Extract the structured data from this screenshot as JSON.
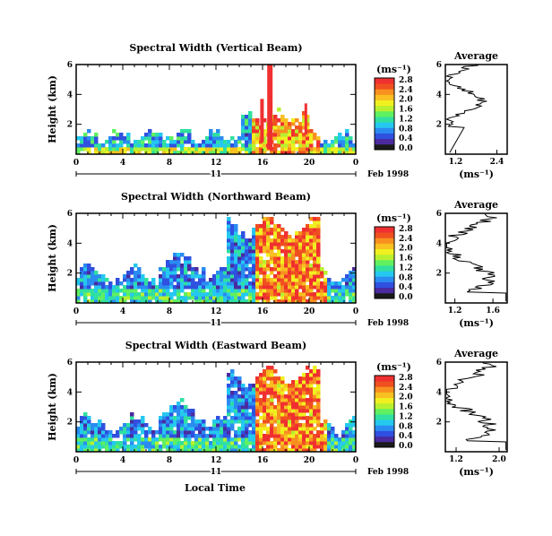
{
  "figure": {
    "xlabel": "Local Time",
    "date_label": "Feb 1998",
    "day_label": "11"
  },
  "colorbar": {
    "unit": "(ms⁻¹)",
    "tick_labels": [
      "0.0",
      "0.4",
      "0.8",
      "1.2",
      "1.6",
      "2.0",
      "2.4",
      "2.8"
    ],
    "colors": [
      "#1a1a1a",
      "#4a2a9e",
      "#3050e0",
      "#2a8cf0",
      "#25c8f0",
      "#30e0a0",
      "#60f060",
      "#b8f030",
      "#f0f020",
      "#f8c020",
      "#f89020",
      "#f05020",
      "#f03030"
    ]
  },
  "chart_data": [
    {
      "type": "heatmap",
      "title": "Spectral Width (Vertical Beam)",
      "ylabel": "Height (km)",
      "x_ticks": [
        "0",
        "4",
        "8",
        "12",
        "16",
        "20",
        "0"
      ],
      "y_ticks": [
        "2",
        "4",
        "6"
      ],
      "xlim": [
        0,
        24
      ],
      "ylim": [
        0,
        6
      ],
      "average": {
        "title": "Average",
        "xlabel": "(ms⁻¹)",
        "x_ticks": [
          "1.2",
          "2.4"
        ],
        "y_ticks": [
          "2",
          "4",
          "6"
        ],
        "xlim": [
          0.9,
          2.7
        ]
      }
    },
    {
      "type": "heatmap",
      "title": "Spectral Width (Northward Beam)",
      "ylabel": "Height (km)",
      "x_ticks": [
        "0",
        "4",
        "8",
        "12",
        "16",
        "20",
        "0"
      ],
      "y_ticks": [
        "2",
        "4",
        "6"
      ],
      "xlim": [
        0,
        24
      ],
      "ylim": [
        0,
        6
      ],
      "average": {
        "title": "Average",
        "xlabel": "(ms⁻¹)",
        "x_ticks": [
          "1.2",
          "1.6"
        ],
        "y_ticks": [
          "2",
          "4",
          "6"
        ],
        "xlim": [
          1.1,
          1.75
        ]
      }
    },
    {
      "type": "heatmap",
      "title": "Spectral Width (Eastward Beam)",
      "ylabel": "Height (km)",
      "x_ticks": [
        "0",
        "4",
        "8",
        "12",
        "16",
        "20",
        "0"
      ],
      "y_ticks": [
        "2",
        "4",
        "6"
      ],
      "xlim": [
        0,
        24
      ],
      "ylim": [
        0,
        6
      ],
      "average": {
        "title": "Average",
        "xlabel": "(ms⁻¹)",
        "x_ticks": [
          "1.2",
          "2.0"
        ],
        "y_ticks": [
          "2",
          "4",
          "6"
        ],
        "xlim": [
          1.0,
          2.15
        ]
      }
    }
  ]
}
